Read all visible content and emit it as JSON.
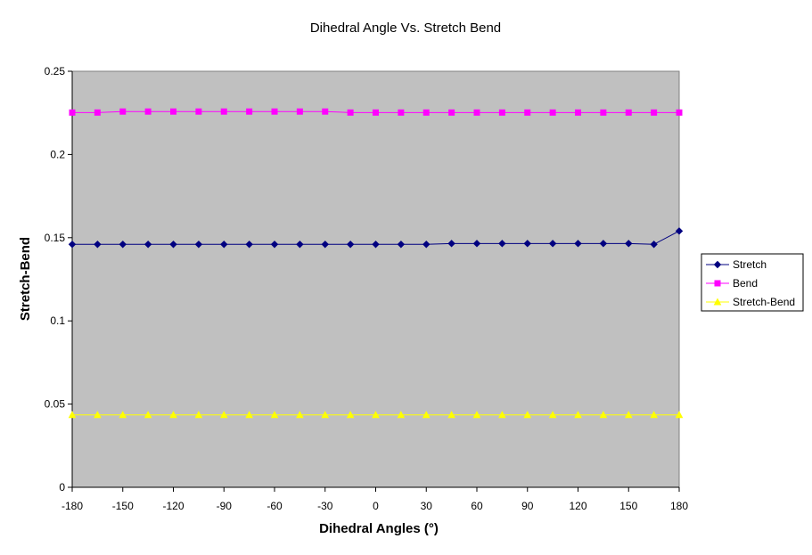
{
  "chart_data": {
    "type": "line",
    "title": "Dihedral Angle Vs. Stretch Bend",
    "xlabel": "Dihedral Angles (°)",
    "ylabel": "Stretch-Bend",
    "xlim": [
      -180,
      180
    ],
    "ylim": [
      0,
      0.25
    ],
    "x_ticks": [
      "-180",
      "-150",
      "-120",
      "-90",
      "-60",
      "-30",
      "0",
      "30",
      "60",
      "90",
      "120",
      "150",
      "180"
    ],
    "y_ticks": [
      "0",
      "0.05",
      "0.1",
      "0.15",
      "0.2",
      "0.25"
    ],
    "grid": false,
    "plot_background": "#C0C0C0",
    "legend_position": "right",
    "x": [
      -180,
      -165,
      -150,
      -135,
      -120,
      -105,
      -90,
      -75,
      -60,
      -45,
      -30,
      -15,
      0,
      15,
      30,
      45,
      60,
      75,
      90,
      105,
      120,
      135,
      150,
      165,
      180
    ],
    "series": [
      {
        "name": "Stretch",
        "color": "#000080",
        "marker": "diamond",
        "values": [
          0.146,
          0.146,
          0.146,
          0.146,
          0.146,
          0.146,
          0.146,
          0.146,
          0.146,
          0.146,
          0.146,
          0.146,
          0.146,
          0.146,
          0.146,
          0.1465,
          0.1465,
          0.1465,
          0.1465,
          0.1465,
          0.1465,
          0.1465,
          0.1465,
          0.146,
          0.154
        ]
      },
      {
        "name": "Bend",
        "color": "#FF00FF",
        "marker": "square",
        "values": [
          0.2252,
          0.2252,
          0.2258,
          0.2258,
          0.2258,
          0.2258,
          0.2258,
          0.2258,
          0.2258,
          0.2258,
          0.2258,
          0.2252,
          0.2252,
          0.2252,
          0.2252,
          0.2252,
          0.2252,
          0.2252,
          0.2252,
          0.2252,
          0.2252,
          0.2252,
          0.2252,
          0.2252,
          0.2252
        ]
      },
      {
        "name": "Stretch-Bend",
        "color": "#FFFF00",
        "marker": "triangle",
        "values": [
          0.0435,
          0.0435,
          0.0435,
          0.0435,
          0.0435,
          0.0435,
          0.0435,
          0.0435,
          0.0435,
          0.0435,
          0.0435,
          0.0435,
          0.0435,
          0.0435,
          0.0435,
          0.0435,
          0.0435,
          0.0435,
          0.0435,
          0.0435,
          0.0435,
          0.0435,
          0.0435,
          0.0435,
          0.0435
        ]
      }
    ]
  }
}
